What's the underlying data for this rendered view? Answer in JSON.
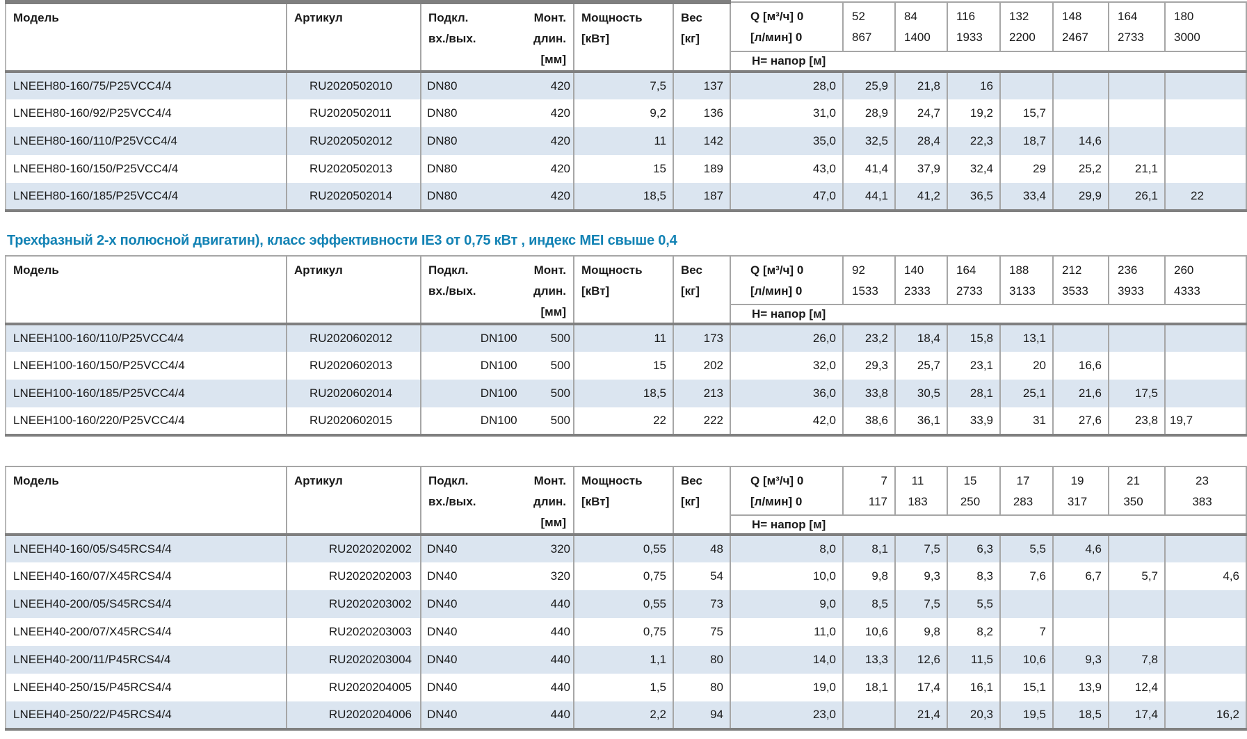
{
  "heading": {
    "text": "Трехфазный 2-х полюсной двигатин), класс эффективности IE3 от 0,75 кВт ,  индекс MEI свыше 0,4",
    "color": "#1282b4"
  },
  "columns": {
    "model": "Модель",
    "article": "Артикул",
    "conn_line1": "Подкл.",
    "conn_line2": "вх./вых.",
    "mount_line1": "Монт.",
    "mount_line2": "длин.",
    "mount_line3": "[мм]",
    "power_line1": "Мощность",
    "power_line2": "[кВт]",
    "weight_line1": "Вес",
    "weight_line2": "[кг]",
    "q_line1": "Q [м³/ч] 0",
    "q_line2": "[л/мин] 0",
    "head_label": "H= напор [м]"
  },
  "style": {
    "stripe_color": "#dbe5f0",
    "border_color": "#a6a6a6",
    "thick_border_color": "#7f7f7f",
    "heading_color": "#1282b4"
  },
  "tables": [
    {
      "flows_m3h": [
        "52",
        "84",
        "116",
        "132",
        "148",
        "164",
        "180"
      ],
      "flows_lmin": [
        "867",
        "1400",
        "1933",
        "2200",
        "2467",
        "2733",
        "3000"
      ],
      "rows": [
        {
          "model": "LNEEH80-160/75/P25VCC4/4",
          "article": "RU2020502010",
          "dn": "DN80",
          "length": "420",
          "power": "7,5",
          "weight": "137",
          "h": [
            "28,0",
            "25,9",
            "21,8",
            "16",
            "",
            "",
            "",
            ""
          ]
        },
        {
          "model": "LNEEH80-160/92/P25VCC4/4",
          "article": "RU2020502011",
          "dn": "DN80",
          "length": "420",
          "power": "9,2",
          "weight": "136",
          "h": [
            "31,0",
            "28,9",
            "24,7",
            "19,2",
            "15,7",
            "",
            "",
            ""
          ]
        },
        {
          "model": "LNEEH80-160/110/P25VCC4/4",
          "article": "RU2020502012",
          "dn": "DN80",
          "length": "420",
          "power": "11",
          "weight": "142",
          "h": [
            "35,0",
            "32,5",
            "28,4",
            "22,3",
            "18,7",
            "14,6",
            "",
            ""
          ]
        },
        {
          "model": "LNEEH80-160/150/P25VCC4/4",
          "article": "RU2020502013",
          "dn": "DN80",
          "length": "420",
          "power": "15",
          "weight": "189",
          "h": [
            "43,0",
            "41,4",
            "37,9",
            "32,4",
            "29",
            "25,2",
            "21,1",
            ""
          ]
        },
        {
          "model": "LNEEH80-160/185/P25VCC4/4",
          "article": "RU2020502014",
          "dn": "DN80",
          "length": "420",
          "power": "18,5",
          "weight": "187",
          "h": [
            "47,0",
            "44,1",
            "41,2",
            "36,5",
            "33,4",
            "29,9",
            "26,1",
            "22"
          ]
        }
      ]
    },
    {
      "flows_m3h": [
        "92",
        "140",
        "164",
        "188",
        "212",
        "236",
        "260"
      ],
      "flows_lmin": [
        "1533",
        "2333",
        "2733",
        "3133",
        "3533",
        "3933",
        "4333"
      ],
      "rows": [
        {
          "model": "LNEEH100-160/110/P25VCC4/4",
          "article": "RU2020602012",
          "dn": "DN100",
          "length": "500",
          "power": "11",
          "weight": "173",
          "h": [
            "26,0",
            "23,2",
            "18,4",
            "15,8",
            "13,1",
            "",
            "",
            ""
          ]
        },
        {
          "model": "LNEEH100-160/150/P25VCC4/4",
          "article": "RU2020602013",
          "dn": "DN100",
          "length": "500",
          "power": "15",
          "weight": "202",
          "h": [
            "32,0",
            "29,3",
            "25,7",
            "23,1",
            "20",
            "16,6",
            "",
            ""
          ]
        },
        {
          "model": "LNEEH100-160/185/P25VCC4/4",
          "article": "RU2020602014",
          "dn": "DN100",
          "length": "500",
          "power": "18,5",
          "weight": "213",
          "h": [
            "36,0",
            "33,8",
            "30,5",
            "28,1",
            "25,1",
            "21,6",
            "17,5",
            ""
          ]
        },
        {
          "model": "LNEEH100-160/220/P25VCC4/4",
          "article": "RU2020602015",
          "dn": "DN100",
          "length": "500",
          "power": "22",
          "weight": "222",
          "h": [
            "42,0",
            "38,6",
            "36,1",
            "33,9",
            "31",
            "27,6",
            "23,8",
            "19,7"
          ]
        }
      ]
    },
    {
      "flows_m3h": [
        "7",
        "11",
        "15",
        "17",
        "19",
        "21",
        "23"
      ],
      "flows_lmin": [
        "117",
        "183",
        "250",
        "283",
        "317",
        "350",
        "383"
      ],
      "rows": [
        {
          "model": "LNEEH40-160/05/S45RCS4/4",
          "article": "RU2020202002",
          "dn": "DN40",
          "length": "320",
          "power": "0,55",
          "weight": "48",
          "h": [
            "8,0",
            "8,1",
            "7,5",
            "6,3",
            "5,5",
            "4,6",
            "",
            ""
          ]
        },
        {
          "model": "LNEEH40-160/07/X45RCS4/4",
          "article": "RU2020202003",
          "dn": "DN40",
          "length": "320",
          "power": "0,75",
          "weight": "54",
          "h": [
            "10,0",
            "9,8",
            "9,3",
            "8,3",
            "7,6",
            "6,7",
            "5,7",
            "4,6"
          ]
        },
        {
          "model": "LNEEH40-200/05/S45RCS4/4",
          "article": "RU2020203002",
          "dn": "DN40",
          "length": "440",
          "power": "0,55",
          "weight": "73",
          "h": [
            "9,0",
            "8,5",
            "7,5",
            "5,5",
            "",
            "",
            "",
            ""
          ]
        },
        {
          "model": "LNEEH40-200/07/X45RCS4/4",
          "article": "RU2020203003",
          "dn": "DN40",
          "length": "440",
          "power": "0,75",
          "weight": "75",
          "h": [
            "11,0",
            "10,6",
            "9,8",
            "8,2",
            "7",
            "",
            "",
            ""
          ]
        },
        {
          "model": "LNEEH40-200/11/P45RCS4/4",
          "article": "RU2020203004",
          "dn": "DN40",
          "length": "440",
          "power": "1,1",
          "weight": "80",
          "h": [
            "14,0",
            "13,3",
            "12,6",
            "11,5",
            "10,6",
            "9,3",
            "7,8",
            ""
          ]
        },
        {
          "model": "LNEEH40-250/15/P45RCS4/4",
          "article": "RU2020204005",
          "dn": "DN40",
          "length": "440",
          "power": "1,5",
          "weight": "80",
          "h": [
            "19,0",
            "18,1",
            "17,4",
            "16,1",
            "15,1",
            "13,9",
            "12,4",
            ""
          ]
        },
        {
          "model": "LNEEH40-250/22/P45RCS4/4",
          "article": "RU2020204006",
          "dn": "DN40",
          "length": "440",
          "power": "2,2",
          "weight": "94",
          "h": [
            "23,0",
            "",
            "21,4",
            "20,3",
            "19,5",
            "18,5",
            "17,4",
            "16,2"
          ]
        }
      ]
    }
  ]
}
